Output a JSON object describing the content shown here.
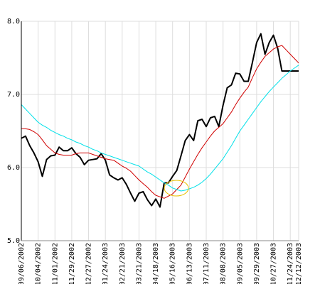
{
  "chart_data": {
    "type": "line",
    "categories": [
      "09/06/2002",
      null,
      null,
      null,
      "10/04/2002",
      null,
      null,
      null,
      "11/01/2002",
      null,
      null,
      null,
      "11/29/2002",
      null,
      null,
      null,
      "12/27/2002",
      null,
      null,
      null,
      "01/24/2003",
      null,
      null,
      null,
      "02/21/2003",
      null,
      null,
      null,
      "03/21/2003",
      null,
      null,
      null,
      "04/18/2003",
      null,
      null,
      null,
      "05/16/2003",
      null,
      null,
      null,
      "06/13/2003",
      null,
      null,
      null,
      "07/11/2003",
      null,
      null,
      null,
      "08/08/2003",
      null,
      null,
      null,
      "09/05/2003",
      null,
      null,
      null,
      "09/29/2003",
      null,
      null,
      null,
      "10/27/2003",
      null,
      null,
      null,
      "11/24/2003",
      null,
      "12/12/2003"
    ],
    "series": [
      {
        "color": "#000000",
        "values": [
          6.4,
          6.43,
          6.3,
          6.2,
          6.08,
          5.88,
          6.11,
          6.16,
          6.17,
          6.28,
          6.23,
          6.23,
          6.27,
          6.19,
          6.14,
          6.04,
          6.1,
          6.11,
          6.12,
          6.19,
          6.1,
          5.9,
          5.86,
          5.83,
          5.86,
          5.77,
          5.65,
          5.54,
          5.65,
          5.67,
          5.56,
          5.48,
          5.57,
          5.46,
          5.79,
          5.79,
          5.88,
          5.96,
          6.16,
          6.37,
          6.45,
          6.37,
          6.64,
          6.66,
          6.56,
          6.68,
          6.7,
          6.56,
          6.85,
          7.09,
          7.13,
          7.29,
          7.28,
          7.18,
          7.18,
          7.44,
          7.71,
          7.83,
          7.55,
          7.71,
          7.81,
          7.63,
          7.32,
          7.32,
          7.32,
          7.32,
          7.32
        ]
      },
      {
        "color": "#d00000",
        "values": [
          6.53,
          6.53,
          6.52,
          6.49,
          6.45,
          6.38,
          6.3,
          6.25,
          6.2,
          6.18,
          6.17,
          6.17,
          6.17,
          6.19,
          6.2,
          6.2,
          6.2,
          6.18,
          6.16,
          6.14,
          6.12,
          6.11,
          6.1,
          6.06,
          6.02,
          5.99,
          5.95,
          5.89,
          5.83,
          5.78,
          5.73,
          5.67,
          5.62,
          5.6,
          5.58,
          5.61,
          5.64,
          5.7,
          5.76,
          5.87,
          5.98,
          6.08,
          6.18,
          6.27,
          6.35,
          6.43,
          6.5,
          6.55,
          6.6,
          6.68,
          6.76,
          6.86,
          6.95,
          7.03,
          7.1,
          7.23,
          7.35,
          7.44,
          7.52,
          7.57,
          7.62,
          7.65,
          7.67,
          7.61,
          7.55,
          7.49,
          7.43
        ]
      },
      {
        "color": "#00e0e8",
        "values": [
          6.86,
          6.8,
          6.74,
          6.68,
          6.62,
          6.58,
          6.55,
          6.51,
          6.48,
          6.45,
          6.43,
          6.4,
          6.38,
          6.35,
          6.33,
          6.3,
          6.28,
          6.25,
          6.23,
          6.2,
          6.18,
          6.16,
          6.14,
          6.12,
          6.1,
          6.08,
          6.06,
          6.04,
          6.02,
          5.98,
          5.94,
          5.91,
          5.87,
          5.83,
          5.79,
          5.76,
          5.72,
          5.7,
          5.68,
          5.69,
          5.71,
          5.73,
          5.76,
          5.8,
          5.85,
          5.91,
          5.98,
          6.05,
          6.12,
          6.21,
          6.3,
          6.4,
          6.5,
          6.58,
          6.66,
          6.74,
          6.82,
          6.9,
          6.97,
          7.04,
          7.1,
          7.16,
          7.22,
          7.27,
          7.32,
          7.36,
          7.4
        ]
      }
    ],
    "ylim": [
      5,
      8
    ],
    "yticks": [
      {
        "value": 5,
        "label": "5.0"
      },
      {
        "value": 6,
        "label": "6.0"
      },
      {
        "value": 7,
        "label": "7.0"
      },
      {
        "value": 8,
        "label": "8.0"
      }
    ],
    "grid": true
  }
}
